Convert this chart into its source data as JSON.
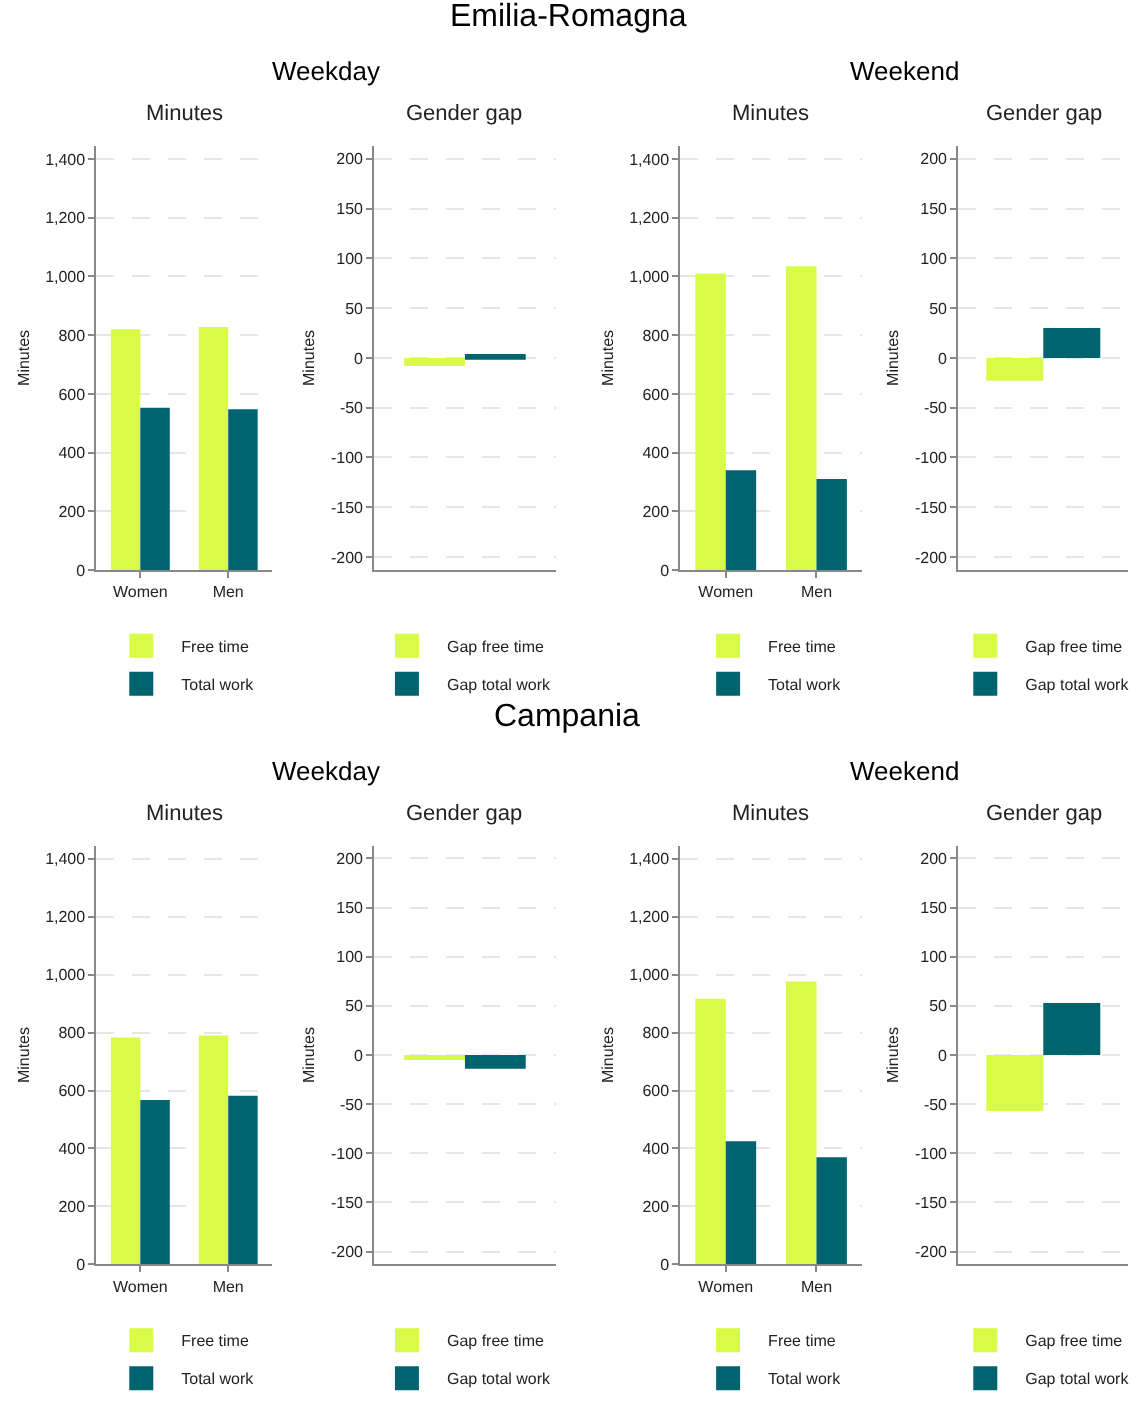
{
  "chart_data": [
    {
      "type": "bar",
      "title": "Minutes",
      "ylabel": "Minutes",
      "annotations": [
        "Emilia-Romagna",
        "Weekday"
      ],
      "categories": [
        "Women",
        "Men"
      ],
      "series": [
        {
          "name": "Free time",
          "color": "#d9fa46",
          "values": [
            820,
            828
          ]
        },
        {
          "name": "Total work",
          "color": "#00646e",
          "values": [
            553,
            548
          ]
        }
      ],
      "ylim": [
        0,
        1445
      ],
      "yticks": [
        0,
        200,
        400,
        600,
        800,
        {
          "value": 1000,
          "label": "1,000"
        },
        {
          "value": 1200,
          "label": "1,200"
        },
        {
          "value": 1400,
          "label": "1,400"
        }
      ],
      "grid": "y",
      "legend": "bottom"
    },
    {
      "type": "bar",
      "title": "Gender gap",
      "ylabel": "Minutes",
      "categories": [
        null
      ],
      "series": [
        {
          "name": "Gap free time",
          "color": "#d9fa46",
          "values": [
            -8
          ]
        },
        {
          "name": "Gap total work",
          "color": "#00646e",
          "values": [
            4
          ]
        }
      ],
      "ylim": [
        -213,
        213
      ],
      "yticks": [
        -200,
        -150,
        -100,
        -50,
        0,
        50,
        100,
        150,
        200
      ],
      "grid": "y",
      "legend": "bottom",
      "tick_labels": "y"
    },
    {
      "type": "bar",
      "title": "Minutes",
      "ylabel": "Minutes",
      "annotations": [
        "Weekend"
      ],
      "categories": [
        "Women",
        "Men"
      ],
      "series": [
        {
          "name": "Free time",
          "color": "#d9fa46",
          "values": [
            1010,
            1035
          ]
        },
        {
          "name": "Total work",
          "color": "#00646e",
          "values": [
            340,
            310
          ]
        }
      ],
      "ylim": [
        0,
        1445
      ],
      "yticks": [
        0,
        200,
        400,
        600,
        800,
        {
          "value": 1000,
          "label": "1,000"
        },
        {
          "value": 1200,
          "label": "1,200"
        },
        {
          "value": 1400,
          "label": "1,400"
        }
      ],
      "grid": "y",
      "legend": "bottom"
    },
    {
      "type": "bar",
      "title": "Gender gap",
      "ylabel": "Minutes",
      "categories": [
        null
      ],
      "series": [
        {
          "name": "Gap free time",
          "color": "#d9fa46",
          "values": [
            -23
          ]
        },
        {
          "name": "Gap total work",
          "color": "#00646e",
          "values": [
            30
          ]
        }
      ],
      "ylim": [
        -213,
        213
      ],
      "yticks": [
        -200,
        -150,
        -100,
        -50,
        0,
        50,
        100,
        150,
        200
      ],
      "grid": "y",
      "legend": "bottom",
      "tick_labels": "y"
    },
    {
      "type": "bar",
      "title": "Minutes",
      "ylabel": "Minutes",
      "annotations": [
        "Campania",
        "Weekday"
      ],
      "categories": [
        "Women",
        "Men"
      ],
      "series": [
        {
          "name": "Free time",
          "color": "#d9fa46",
          "values": [
            783,
            790
          ]
        },
        {
          "name": "Total work",
          "color": "#00646e",
          "values": [
            567,
            582
          ]
        }
      ],
      "ylim": [
        0,
        1445
      ],
      "yticks": [
        0,
        200,
        400,
        600,
        800,
        {
          "value": 1000,
          "label": "1,000"
        },
        {
          "value": 1200,
          "label": "1,200"
        },
        {
          "value": 1400,
          "label": "1,400"
        }
      ],
      "grid": "y",
      "legend": "bottom"
    },
    {
      "type": "bar",
      "title": "Gender gap",
      "ylabel": "Minutes",
      "categories": [
        null
      ],
      "series": [
        {
          "name": "Gap free time",
          "color": "#d9fa46",
          "values": [
            -5
          ]
        },
        {
          "name": "Gap total work",
          "color": "#00646e",
          "values": [
            -14
          ]
        }
      ],
      "ylim": [
        -213,
        213
      ],
      "yticks": [
        -200,
        -150,
        -100,
        -50,
        0,
        50,
        100,
        150,
        200
      ],
      "grid": "y",
      "legend": "bottom",
      "tick_labels": "y"
    },
    {
      "type": "bar",
      "title": "Minutes",
      "ylabel": "Minutes",
      "annotations": [
        "Weekend"
      ],
      "categories": [
        "Women",
        "Men"
      ],
      "series": [
        {
          "name": "Free time",
          "color": "#d9fa46",
          "values": [
            917,
            976
          ]
        },
        {
          "name": "Total work",
          "color": "#00646e",
          "values": [
            425,
            370
          ]
        }
      ],
      "ylim": [
        0,
        1445
      ],
      "yticks": [
        0,
        200,
        400,
        600,
        800,
        {
          "value": 1000,
          "label": "1,000"
        },
        {
          "value": 1200,
          "label": "1,200"
        },
        {
          "value": 1400,
          "label": "1,400"
        }
      ],
      "grid": "y",
      "legend": "bottom"
    },
    {
      "type": "bar",
      "title": "Gender gap",
      "ylabel": "Minutes",
      "categories": [
        null
      ],
      "series": [
        {
          "name": "Gap free time",
          "color": "#d9fa46",
          "values": [
            -57
          ]
        },
        {
          "name": "Gap total work",
          "color": "#00646e",
          "values": [
            53
          ]
        }
      ],
      "ylim": [
        -213,
        213
      ],
      "yticks": [
        -200,
        -150,
        -100,
        -50,
        0,
        50,
        100,
        150,
        200
      ],
      "grid": "y",
      "legend": "bottom",
      "tick_labels": "y"
    }
  ]
}
